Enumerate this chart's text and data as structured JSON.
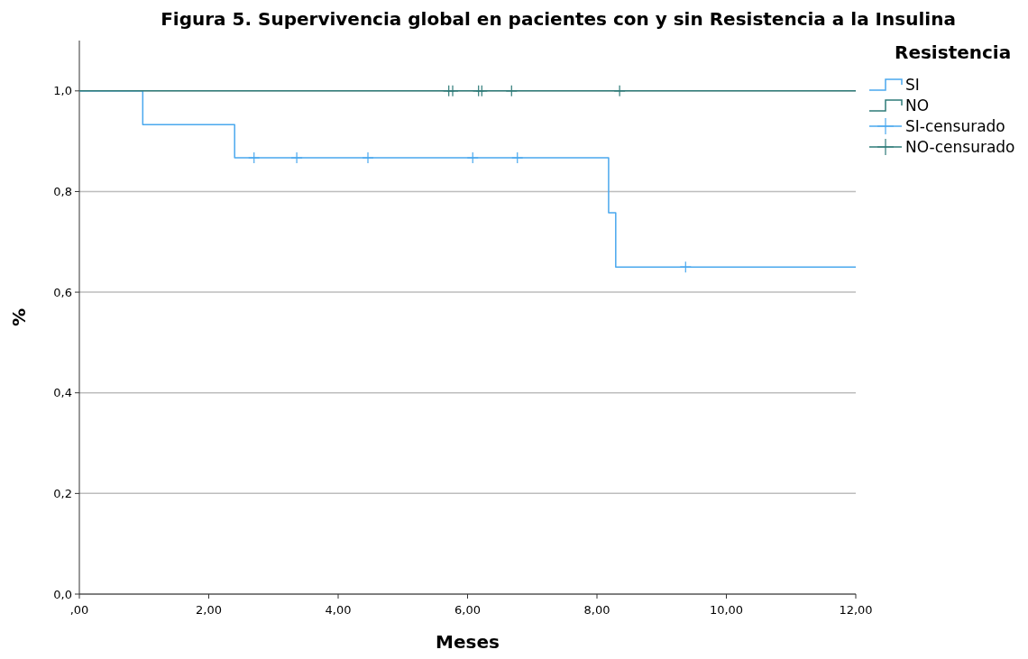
{
  "chart_data": {
    "type": "step",
    "title": "Figura 5. Supervivencia global en pacientes con y sin Resistencia a la Insulina",
    "xlabel": "Meses",
    "ylabel": "%",
    "legend_title": "Resistencia",
    "legend": "top right",
    "grid": "y",
    "xlim": [
      0,
      12
    ],
    "xticks": [
      {
        "value": 0,
        "label": ",00"
      },
      {
        "value": 2,
        "label": "2,00"
      },
      {
        "value": 4,
        "label": "4,00"
      },
      {
        "value": 6,
        "label": "6,00"
      },
      {
        "value": 8,
        "label": "8,00"
      },
      {
        "value": 10,
        "label": "10,00"
      },
      {
        "value": 12,
        "label": "12,00"
      }
    ],
    "ylim": [
      0,
      1.1
    ],
    "yticks": [
      {
        "value": 0,
        "label": "0,0"
      },
      {
        "value": 0.2,
        "label": "0,2"
      },
      {
        "value": 0.4,
        "label": "0,4"
      },
      {
        "value": 0.6,
        "label": "0,6"
      },
      {
        "value": 0.8,
        "label": "0,8"
      },
      {
        "value": 1,
        "label": "1,0"
      }
    ],
    "series": [
      {
        "name": "SI",
        "type": "step",
        "color": "#4aa8ee",
        "x": [
          0,
          0.98,
          2.4,
          8.18,
          8.29,
          12
        ],
        "values": [
          1,
          0.933,
          0.867,
          0.758,
          0.65,
          0.65
        ]
      },
      {
        "name": "NO",
        "type": "step",
        "color": "#2e7b78",
        "x": [
          0,
          12
        ],
        "values": [
          1,
          1
        ]
      },
      {
        "name": "SI-censurado",
        "type": "scatter",
        "marker": "cross",
        "color": "#4aa8ee",
        "x": [
          2.7,
          3.36,
          4.46,
          6.08,
          6.77,
          9.37
        ],
        "values": [
          0.867,
          0.867,
          0.867,
          0.867,
          0.867,
          0.65
        ]
      },
      {
        "name": "NO-censurado",
        "type": "scatter",
        "marker": "cross",
        "color": "#2e7b78",
        "x": [
          5.71,
          5.77,
          6.17,
          6.22,
          6.68,
          8.35
        ],
        "values": [
          1,
          1,
          1,
          1,
          1,
          1
        ]
      }
    ]
  }
}
